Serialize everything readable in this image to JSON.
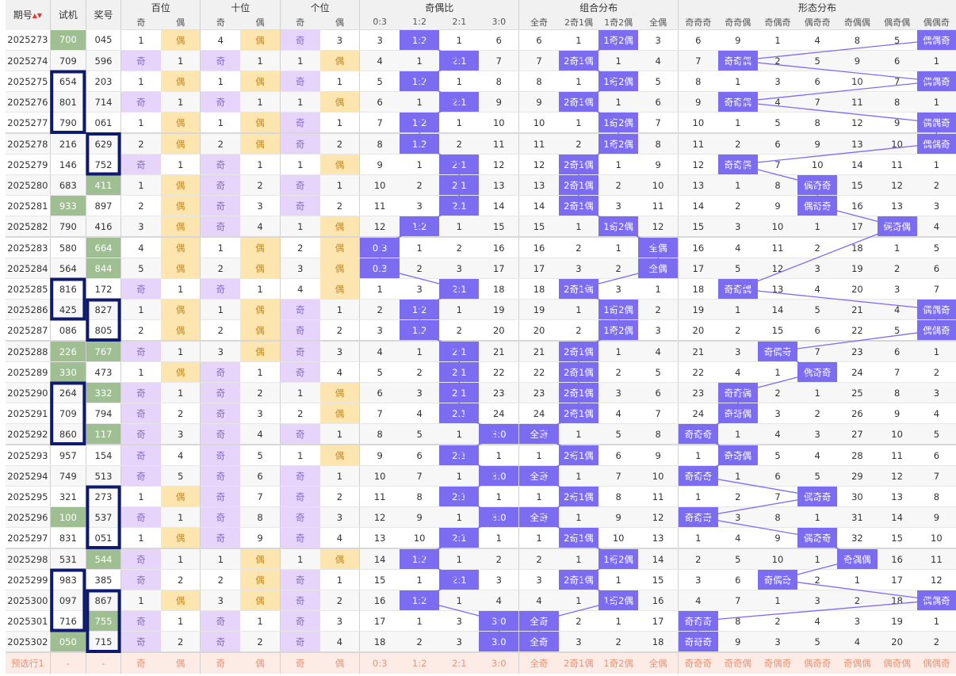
{
  "header": {
    "col_period": "期号",
    "col_test": "试机",
    "col_prize": "奖号",
    "group_hundreds": "百位",
    "group_tens": "十位",
    "group_units": "个位",
    "group_parity_ratio": "奇偶比",
    "group_combo": "组合分布",
    "group_form": "形态分布",
    "odd": "奇",
    "even": "偶",
    "ratios": [
      "0:3",
      "1:2",
      "2:1",
      "3:0"
    ],
    "combos": [
      "全奇",
      "2奇1偶",
      "1奇2偶",
      "全偶"
    ],
    "forms": [
      "奇奇奇",
      "奇奇偶",
      "奇偶奇",
      "偶奇奇",
      "奇偶偶",
      "偶奇偶",
      "偶偶奇"
    ]
  },
  "rows": [
    {
      "p": "2025273",
      "t": "700",
      "n": "045",
      "tg": 1,
      "ng": 0,
      "h": [
        1,
        "偶"
      ],
      "te": [
        4,
        "偶"
      ],
      "u": [
        "奇",
        3
      ],
      "r": [
        3,
        "1:2",
        1,
        6
      ],
      "c": [
        6,
        1,
        "1奇2偶",
        3
      ],
      "f": [
        6,
        9,
        1,
        4,
        8,
        5,
        "偶偶奇"
      ]
    },
    {
      "p": "2025274",
      "t": "709",
      "n": "596",
      "tg": 0,
      "ng": 0,
      "h": [
        "奇",
        1
      ],
      "te": [
        "奇",
        1
      ],
      "u": [
        1,
        "偶"
      ],
      "r": [
        4,
        1,
        "2:1",
        7
      ],
      "c": [
        7,
        "2奇1偶",
        1,
        4
      ],
      "f": [
        7,
        "奇奇偶",
        2,
        5,
        9,
        6,
        1
      ]
    },
    {
      "p": "2025275",
      "t": "654",
      "n": "203",
      "tg": 0,
      "ng": 0,
      "h": [
        1,
        "偶"
      ],
      "te": [
        1,
        "偶"
      ],
      "u": [
        "奇",
        1
      ],
      "r": [
        5,
        "1:2",
        1,
        8
      ],
      "c": [
        8,
        1,
        "1奇2偶",
        5
      ],
      "f": [
        8,
        1,
        3,
        6,
        10,
        7,
        "偶偶奇"
      ]
    },
    {
      "p": "2025276",
      "t": "801",
      "n": "714",
      "tg": 0,
      "ng": 0,
      "h": [
        "奇",
        1
      ],
      "te": [
        "奇",
        1
      ],
      "u": [
        1,
        "偶"
      ],
      "r": [
        6,
        1,
        "2:1",
        9
      ],
      "c": [
        9,
        "2奇1偶",
        1,
        6
      ],
      "f": [
        9,
        "奇奇偶",
        4,
        7,
        11,
        8,
        1
      ]
    },
    {
      "p": "2025277",
      "t": "790",
      "n": "061",
      "tg": 0,
      "ng": 0,
      "h": [
        1,
        "偶"
      ],
      "te": [
        1,
        "偶"
      ],
      "u": [
        "奇",
        1
      ],
      "r": [
        7,
        "1:2",
        1,
        10
      ],
      "c": [
        10,
        1,
        "1奇2偶",
        7
      ],
      "f": [
        10,
        1,
        5,
        8,
        12,
        9,
        "偶偶奇"
      ]
    },
    {
      "p": "2025278",
      "t": "216",
      "n": "629",
      "tg": 0,
      "ng": 0,
      "h": [
        2,
        "偶"
      ],
      "te": [
        2,
        "偶"
      ],
      "u": [
        "奇",
        2
      ],
      "r": [
        8,
        "1:2",
        2,
        11
      ],
      "c": [
        11,
        2,
        "1奇2偶",
        8
      ],
      "f": [
        11,
        2,
        6,
        9,
        13,
        10,
        "偶偶奇"
      ]
    },
    {
      "p": "2025279",
      "t": "146",
      "n": "752",
      "tg": 0,
      "ng": 0,
      "h": [
        "奇",
        1
      ],
      "te": [
        "奇",
        1
      ],
      "u": [
        1,
        "偶"
      ],
      "r": [
        9,
        1,
        "2:1",
        12
      ],
      "c": [
        12,
        "2奇1偶",
        1,
        9
      ],
      "f": [
        12,
        "奇奇偶",
        7,
        10,
        14,
        11,
        1
      ]
    },
    {
      "p": "2025280",
      "t": "683",
      "n": "411",
      "tg": 0,
      "ng": 1,
      "h": [
        1,
        "偶"
      ],
      "te": [
        "奇",
        2
      ],
      "u": [
        "奇",
        1
      ],
      "r": [
        10,
        2,
        "2:1",
        13
      ],
      "c": [
        13,
        "2奇1偶",
        2,
        10
      ],
      "f": [
        13,
        1,
        8,
        "偶奇奇",
        15,
        12,
        2
      ]
    },
    {
      "p": "2025281",
      "t": "933",
      "n": "897",
      "tg": 1,
      "ng": 0,
      "h": [
        2,
        "偶"
      ],
      "te": [
        "奇",
        3
      ],
      "u": [
        "奇",
        2
      ],
      "r": [
        11,
        3,
        "2:1",
        14
      ],
      "c": [
        14,
        "2奇1偶",
        3,
        11
      ],
      "f": [
        14,
        2,
        9,
        "偶奇奇",
        16,
        13,
        3
      ]
    },
    {
      "p": "2025282",
      "t": "790",
      "n": "416",
      "tg": 0,
      "ng": 0,
      "h": [
        3,
        "偶"
      ],
      "te": [
        "奇",
        4
      ],
      "u": [
        1,
        "偶"
      ],
      "r": [
        12,
        "1:2",
        1,
        15
      ],
      "c": [
        15,
        1,
        "1奇2偶",
        12
      ],
      "f": [
        15,
        3,
        10,
        1,
        17,
        "偶奇偶",
        4
      ]
    },
    {
      "p": "2025283",
      "t": "580",
      "n": "664",
      "tg": 0,
      "ng": 1,
      "h": [
        4,
        "偶"
      ],
      "te": [
        1,
        "偶"
      ],
      "u": [
        2,
        "偶"
      ],
      "r": [
        "0:3",
        1,
        2,
        16
      ],
      "c": [
        16,
        2,
        1,
        "全偶"
      ],
      "f": [
        16,
        4,
        11,
        2,
        18,
        1,
        5
      ]
    },
    {
      "p": "2025284",
      "t": "564",
      "n": "844",
      "tg": 0,
      "ng": 1,
      "h": [
        5,
        "偶"
      ],
      "te": [
        2,
        "偶"
      ],
      "u": [
        3,
        "偶"
      ],
      "r": [
        "0:3",
        2,
        3,
        17
      ],
      "c": [
        17,
        3,
        2,
        "全偶"
      ],
      "f": [
        17,
        5,
        12,
        3,
        19,
        2,
        6
      ]
    },
    {
      "p": "2025285",
      "t": "816",
      "n": "172",
      "tg": 0,
      "ng": 0,
      "h": [
        "奇",
        1
      ],
      "te": [
        "奇",
        1
      ],
      "u": [
        4,
        "偶"
      ],
      "r": [
        1,
        3,
        "2:1",
        18
      ],
      "c": [
        18,
        "2奇1偶",
        3,
        1
      ],
      "f": [
        18,
        "奇奇偶",
        13,
        4,
        20,
        3,
        7
      ]
    },
    {
      "p": "2025286",
      "t": "425",
      "n": "827",
      "tg": 0,
      "ng": 0,
      "h": [
        1,
        "偶"
      ],
      "te": [
        1,
        "偶"
      ],
      "u": [
        "奇",
        1
      ],
      "r": [
        2,
        "1:2",
        1,
        19
      ],
      "c": [
        19,
        1,
        "1奇2偶",
        2
      ],
      "f": [
        19,
        1,
        14,
        5,
        21,
        4,
        "偶偶奇"
      ]
    },
    {
      "p": "2025287",
      "t": "086",
      "n": "805",
      "tg": 0,
      "ng": 0,
      "h": [
        2,
        "偶"
      ],
      "te": [
        2,
        "偶"
      ],
      "u": [
        "奇",
        2
      ],
      "r": [
        3,
        "1:2",
        2,
        20
      ],
      "c": [
        20,
        2,
        "1奇2偶",
        3
      ],
      "f": [
        20,
        2,
        15,
        6,
        22,
        5,
        "偶偶奇"
      ]
    },
    {
      "p": "2025288",
      "t": "226",
      "n": "767",
      "tg": 1,
      "ng": 1,
      "h": [
        "奇",
        1
      ],
      "te": [
        3,
        "偶"
      ],
      "u": [
        "奇",
        3
      ],
      "r": [
        4,
        1,
        "2:1",
        21
      ],
      "c": [
        21,
        "2奇1偶",
        1,
        4
      ],
      "f": [
        21,
        3,
        "奇偶奇",
        7,
        23,
        6,
        1
      ]
    },
    {
      "p": "2025289",
      "t": "330",
      "n": "473",
      "tg": 1,
      "ng": 0,
      "h": [
        1,
        "偶"
      ],
      "te": [
        "奇",
        1
      ],
      "u": [
        "奇",
        4
      ],
      "r": [
        5,
        2,
        "2:1",
        22
      ],
      "c": [
        22,
        "2奇1偶",
        2,
        5
      ],
      "f": [
        22,
        4,
        1,
        "偶奇奇",
        24,
        7,
        2
      ]
    },
    {
      "p": "2025290",
      "t": "264",
      "n": "332",
      "tg": 0,
      "ng": 1,
      "h": [
        "奇",
        1
      ],
      "te": [
        "奇",
        2
      ],
      "u": [
        1,
        "偶"
      ],
      "r": [
        6,
        3,
        "2:1",
        23
      ],
      "c": [
        23,
        "2奇1偶",
        3,
        6
      ],
      "f": [
        23,
        "奇奇偶",
        2,
        1,
        25,
        8,
        3
      ]
    },
    {
      "p": "2025291",
      "t": "709",
      "n": "794",
      "tg": 0,
      "ng": 0,
      "h": [
        "奇",
        2
      ],
      "te": [
        "奇",
        3
      ],
      "u": [
        2,
        "偶"
      ],
      "r": [
        7,
        4,
        "2:1",
        24
      ],
      "c": [
        24,
        "2奇1偶",
        4,
        7
      ],
      "f": [
        24,
        "奇奇偶",
        3,
        2,
        26,
        9,
        4
      ]
    },
    {
      "p": "2025292",
      "t": "860",
      "n": "117",
      "tg": 0,
      "ng": 1,
      "h": [
        "奇",
        3
      ],
      "te": [
        "奇",
        4
      ],
      "u": [
        "奇",
        1
      ],
      "r": [
        8,
        5,
        1,
        "3:0"
      ],
      "c": [
        "全奇",
        1,
        5,
        8
      ],
      "f": [
        "奇奇奇",
        1,
        4,
        3,
        27,
        10,
        5
      ]
    },
    {
      "p": "2025293",
      "t": "957",
      "n": "154",
      "tg": 0,
      "ng": 0,
      "h": [
        "奇",
        4
      ],
      "te": [
        "奇",
        5
      ],
      "u": [
        1,
        "偶"
      ],
      "r": [
        9,
        6,
        "2:1",
        1
      ],
      "c": [
        1,
        "2奇1偶",
        6,
        9
      ],
      "f": [
        1,
        "奇奇偶",
        5,
        4,
        28,
        11,
        6
      ]
    },
    {
      "p": "2025294",
      "t": "749",
      "n": "513",
      "tg": 0,
      "ng": 0,
      "h": [
        "奇",
        5
      ],
      "te": [
        "奇",
        6
      ],
      "u": [
        "奇",
        1
      ],
      "r": [
        10,
        7,
        1,
        "3:0"
      ],
      "c": [
        "全奇",
        1,
        7,
        10
      ],
      "f": [
        "奇奇奇",
        1,
        6,
        5,
        29,
        12,
        7
      ]
    },
    {
      "p": "2025295",
      "t": "321",
      "n": "273",
      "tg": 0,
      "ng": 0,
      "h": [
        1,
        "偶"
      ],
      "te": [
        "奇",
        7
      ],
      "u": [
        "奇",
        2
      ],
      "r": [
        11,
        8,
        "2:1",
        1
      ],
      "c": [
        1,
        "2奇1偶",
        8,
        11
      ],
      "f": [
        1,
        2,
        7,
        "偶奇奇",
        30,
        13,
        8
      ]
    },
    {
      "p": "2025296",
      "t": "100",
      "n": "537",
      "tg": 1,
      "ng": 0,
      "h": [
        "奇",
        1
      ],
      "te": [
        "奇",
        8
      ],
      "u": [
        "奇",
        3
      ],
      "r": [
        12,
        9,
        1,
        "3:0"
      ],
      "c": [
        "全奇",
        1,
        9,
        12
      ],
      "f": [
        "奇奇奇",
        3,
        8,
        1,
        31,
        14,
        9
      ]
    },
    {
      "p": "2025297",
      "t": "831",
      "n": "051",
      "tg": 0,
      "ng": 0,
      "h": [
        1,
        "偶"
      ],
      "te": [
        "奇",
        9
      ],
      "u": [
        "奇",
        4
      ],
      "r": [
        13,
        10,
        "2:1",
        1
      ],
      "c": [
        1,
        "2奇1偶",
        10,
        13
      ],
      "f": [
        1,
        4,
        9,
        "偶奇奇",
        32,
        15,
        10
      ]
    },
    {
      "p": "2025298",
      "t": "531",
      "n": "544",
      "tg": 0,
      "ng": 1,
      "h": [
        "奇",
        1
      ],
      "te": [
        1,
        "偶"
      ],
      "u": [
        1,
        "偶"
      ],
      "r": [
        14,
        "1:2",
        1,
        2
      ],
      "c": [
        2,
        1,
        "1奇2偶",
        14
      ],
      "f": [
        2,
        5,
        10,
        1,
        "奇偶偶",
        16,
        11
      ]
    },
    {
      "p": "2025299",
      "t": "983",
      "n": "385",
      "tg": 0,
      "ng": 0,
      "h": [
        "奇",
        2
      ],
      "te": [
        2,
        "偶"
      ],
      "u": [
        "奇",
        1
      ],
      "r": [
        15,
        1,
        "2:1",
        3
      ],
      "c": [
        3,
        "2奇1偶",
        1,
        15
      ],
      "f": [
        3,
        6,
        "奇偶奇",
        2,
        1,
        17,
        12
      ]
    },
    {
      "p": "2025300",
      "t": "097",
      "n": "867",
      "tg": 0,
      "ng": 0,
      "h": [
        1,
        "偶"
      ],
      "te": [
        3,
        "偶"
      ],
      "u": [
        "奇",
        2
      ],
      "r": [
        16,
        "1:2",
        1,
        4
      ],
      "c": [
        4,
        1,
        "1奇2偶",
        16
      ],
      "f": [
        4,
        7,
        1,
        3,
        2,
        18,
        "偶偶奇"
      ]
    },
    {
      "p": "2025301",
      "t": "716",
      "n": "755",
      "tg": 0,
      "ng": 1,
      "h": [
        "奇",
        1
      ],
      "te": [
        "奇",
        1
      ],
      "u": [
        "奇",
        3
      ],
      "r": [
        17,
        1,
        3,
        "3:0"
      ],
      "c": [
        "全奇",
        2,
        1,
        17
      ],
      "f": [
        "奇奇奇",
        8,
        2,
        4,
        3,
        19,
        1
      ]
    },
    {
      "p": "2025302",
      "t": "050",
      "n": "715",
      "tg": 1,
      "ng": 0,
      "h": [
        "奇",
        2
      ],
      "te": [
        "奇",
        2
      ],
      "u": [
        "奇",
        4
      ],
      "r": [
        18,
        2,
        3,
        "3:0"
      ],
      "c": [
        "全奇",
        3,
        2,
        18
      ],
      "f": [
        "奇奇奇",
        9,
        3,
        5,
        4,
        20,
        2
      ]
    }
  ],
  "footer": {
    "label": "预选行1",
    "dash1": "-",
    "dash2": "-",
    "cells": [
      "奇",
      "偶",
      "奇",
      "偶",
      "奇",
      "偶",
      "0:3",
      "1:2",
      "2:1",
      "3:0",
      "全奇",
      "2奇1偶",
      "1奇2偶",
      "全偶",
      "奇奇奇",
      "奇奇偶",
      "奇偶奇",
      "偶奇奇",
      "奇偶偶",
      "偶奇偶",
      "偶偶奇"
    ]
  },
  "colors": {
    "highlight": "#7b6cf2",
    "test_green": "#9fbf93",
    "odd_purple": "#e6d4fb",
    "even_orange": "#fde5b0",
    "box_border": "#0d1a6e",
    "footer_bg": "#fdece6"
  }
}
